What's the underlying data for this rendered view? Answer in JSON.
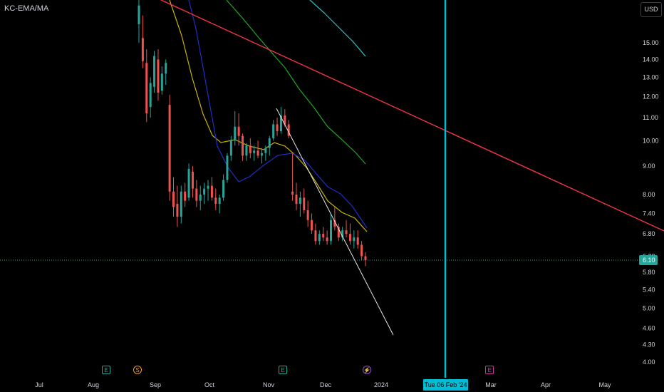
{
  "header": {
    "symbol": "KC-EMA/MA",
    "currency": "USD"
  },
  "colors": {
    "up": "#26a69a",
    "down": "#ef5350",
    "background": "#000000",
    "axis_text": "#d1d4dc",
    "crosshair": "#00bcd4",
    "trendline_red": "#f23645",
    "trendline_white": "#e8e8e8",
    "ma_yellow": "#c8b400",
    "ma_blue": "#1e2fc8",
    "ma_green": "#1fa81f",
    "ma_teal": "#26c6c6"
  },
  "chart_data": {
    "type": "candlestick",
    "y_axis": {
      "scale": "log",
      "ylim": [
        3.7,
        18.0
      ],
      "ticks": [
        "15.00",
        "14.00",
        "13.00",
        "12.00",
        "11.00",
        "10.00",
        "9.00",
        "8.00",
        "7.40",
        "6.80",
        "6.20",
        "5.80",
        "5.40",
        "5.00",
        "4.60",
        "4.30",
        "4.00"
      ]
    },
    "x_axis": {
      "ticks": [
        "Jul",
        "Aug",
        "Sep",
        "Oct",
        "Nov",
        "Dec",
        "2024",
        "Mar",
        "Apr",
        "May"
      ],
      "crosshair_label": "Tue 06 Feb '24"
    },
    "last_price": "6.10",
    "candles": [
      [
        16.2,
        18.3,
        15.0,
        17.5
      ],
      [
        15.3,
        16.8,
        13.5,
        13.9
      ],
      [
        13.8,
        14.6,
        10.8,
        11.2
      ],
      [
        11.5,
        13.0,
        11.0,
        12.7
      ],
      [
        12.5,
        14.5,
        12.2,
        14.2
      ],
      [
        14.0,
        14.6,
        11.8,
        12.2
      ],
      [
        12.3,
        13.6,
        12.1,
        13.2
      ],
      [
        13.2,
        14.0,
        12.6,
        13.8
      ],
      [
        11.6,
        12.1,
        7.8,
        8.1
      ],
      [
        8.1,
        8.6,
        7.3,
        7.6
      ],
      [
        7.7,
        8.3,
        7.0,
        7.3
      ],
      [
        7.3,
        8.3,
        7.1,
        8.1
      ],
      [
        8.1,
        8.4,
        7.6,
        7.8
      ],
      [
        7.9,
        9.1,
        7.8,
        8.9
      ],
      [
        8.8,
        9.0,
        7.9,
        8.2
      ],
      [
        8.2,
        8.5,
        7.6,
        7.8
      ],
      [
        7.8,
        8.3,
        7.5,
        8.0
      ],
      [
        8.0,
        8.4,
        7.7,
        8.2
      ],
      [
        8.2,
        8.5,
        7.8,
        8.3
      ],
      [
        8.3,
        8.6,
        7.8,
        7.9
      ],
      [
        7.9,
        8.2,
        7.5,
        7.7
      ],
      [
        7.7,
        8.0,
        7.4,
        7.9
      ],
      [
        7.9,
        8.7,
        7.8,
        8.5
      ],
      [
        8.5,
        9.5,
        8.4,
        9.4
      ],
      [
        9.4,
        10.2,
        9.2,
        10.0
      ],
      [
        10.0,
        11.3,
        9.8,
        10.6
      ],
      [
        10.6,
        11.2,
        9.8,
        10.2
      ],
      [
        10.2,
        10.3,
        9.2,
        9.4
      ],
      [
        9.4,
        9.9,
        9.2,
        9.8
      ],
      [
        9.8,
        10.1,
        9.3,
        9.5
      ],
      [
        9.5,
        9.8,
        9.2,
        9.6
      ],
      [
        9.6,
        10.0,
        9.3,
        9.4
      ],
      [
        9.4,
        9.7,
        9.1,
        9.5
      ],
      [
        9.5,
        9.8,
        9.2,
        9.7
      ],
      [
        9.7,
        10.2,
        9.4,
        10.1
      ],
      [
        10.1,
        10.9,
        10.0,
        10.7
      ],
      [
        10.7,
        11.0,
        10.2,
        10.4
      ],
      [
        10.4,
        11.5,
        10.3,
        11.1
      ],
      [
        11.1,
        11.4,
        10.6,
        10.7
      ],
      [
        10.7,
        10.9,
        10.1,
        10.2
      ],
      [
        8.1,
        9.5,
        7.8,
        8.0
      ],
      [
        8.0,
        8.4,
        7.5,
        7.7
      ],
      [
        7.7,
        8.1,
        7.3,
        7.9
      ],
      [
        7.9,
        8.2,
        7.4,
        7.5
      ],
      [
        7.5,
        7.8,
        7.0,
        7.2
      ],
      [
        7.2,
        7.4,
        6.8,
        6.9
      ],
      [
        6.9,
        7.1,
        6.5,
        6.6
      ],
      [
        6.6,
        6.9,
        6.5,
        6.8
      ],
      [
        6.8,
        7.0,
        6.6,
        6.7
      ],
      [
        6.7,
        6.9,
        6.5,
        6.6
      ],
      [
        6.6,
        7.4,
        6.5,
        7.2
      ],
      [
        7.2,
        7.6,
        6.9,
        7.0
      ],
      [
        7.0,
        7.1,
        6.6,
        6.7
      ],
      [
        6.7,
        7.0,
        6.6,
        6.9
      ],
      [
        6.9,
        7.2,
        6.7,
        6.8
      ],
      [
        6.8,
        7.1,
        6.5,
        6.6
      ],
      [
        6.6,
        6.9,
        6.4,
        6.7
      ],
      [
        6.7,
        6.9,
        6.4,
        6.5
      ],
      [
        6.5,
        6.6,
        6.1,
        6.2
      ],
      [
        6.2,
        6.3,
        5.95,
        6.1
      ]
    ],
    "series": [],
    "events": [
      {
        "type": "earnings",
        "label": "E"
      },
      {
        "type": "split",
        "label": "S"
      },
      {
        "type": "earnings",
        "label": "E"
      },
      {
        "type": "dividend",
        "label": "⚡"
      },
      {
        "type": "earnings",
        "label": "E"
      }
    ]
  }
}
